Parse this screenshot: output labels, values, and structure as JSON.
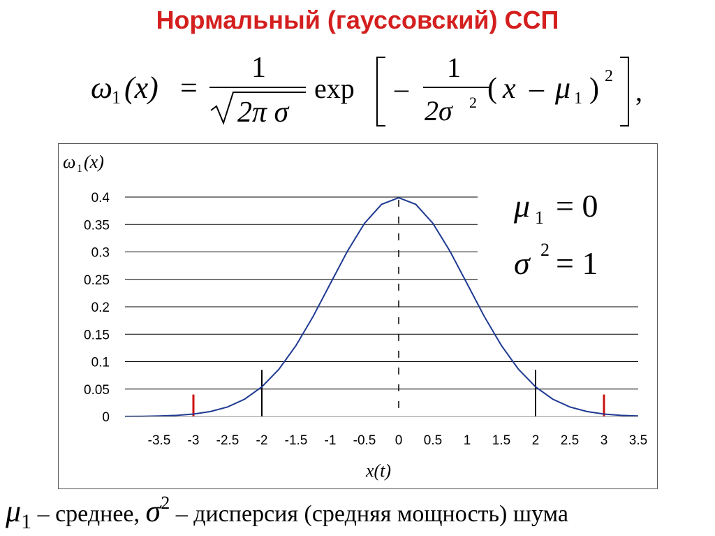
{
  "slide": {
    "title": "Нормальный (гауссовский) ССП"
  },
  "formula": {
    "lhs_symbol": "ω",
    "lhs_sub": "1",
    "lhs_arg": "(x)",
    "equals": "=",
    "numerator": "1",
    "sqrt_content": "2π σ",
    "exp": "exp",
    "minus": "–",
    "inner_numerator": "1",
    "inner_denominator": "2σ",
    "inner_denominator_sup": "2",
    "paren_open": "(",
    "x": "x",
    "inner_minus": "–",
    "mu": "μ",
    "mu_sub": "1",
    "paren_close": ")",
    "power": "2",
    "trailing": ","
  },
  "chart_data": {
    "type": "line",
    "ylabel": "ω1(x)",
    "ylabel_symbol": "ω",
    "ylabel_sub": "1",
    "ylabel_arg": "(x)",
    "xlabel": "x(t)",
    "xlim": [
      -4.0,
      3.5
    ],
    "ylim": [
      0,
      0.4
    ],
    "x_ticks": [
      "-3.5",
      "-3",
      "-2.5",
      "-2",
      "-1.5",
      "-1",
      "-0.5",
      "0",
      "0.5",
      "1",
      "1.5",
      "2",
      "2.5",
      "3",
      "3.5"
    ],
    "x_tick_values": [
      -3.5,
      -3,
      -2.5,
      -2,
      -1.5,
      -1,
      -0.5,
      0,
      0.5,
      1,
      1.5,
      2,
      2.5,
      3,
      3.5
    ],
    "y_ticks": [
      "0",
      "0.05",
      "0.1",
      "0.15",
      "0.2",
      "0.25",
      "0.3",
      "0.35",
      "0.4"
    ],
    "y_tick_values": [
      0,
      0.05,
      0.1,
      0.15,
      0.2,
      0.25,
      0.3,
      0.35,
      0.4
    ],
    "grid": "horizontal",
    "series": [
      {
        "x": [
          -4.0,
          -3.75,
          -3.5,
          -3.25,
          -3.0,
          -2.75,
          -2.5,
          -2.25,
          -2.0,
          -1.75,
          -1.5,
          -1.25,
          -1.0,
          -0.75,
          -0.5,
          -0.25,
          0.0,
          0.25,
          0.5,
          0.75,
          1.0,
          1.25,
          1.5,
          1.75,
          2.0,
          2.25,
          2.5,
          2.75,
          3.0,
          3.25,
          3.5
        ],
        "y": [
          0.0001,
          0.0004,
          0.0009,
          0.002,
          0.0044,
          0.0091,
          0.0175,
          0.0317,
          0.054,
          0.0863,
          0.1295,
          0.1826,
          0.242,
          0.3011,
          0.3521,
          0.3867,
          0.3989,
          0.3867,
          0.3521,
          0.3011,
          0.242,
          0.1826,
          0.1295,
          0.0863,
          0.054,
          0.0317,
          0.0175,
          0.0091,
          0.0044,
          0.002,
          0.0009
        ]
      }
    ],
    "line_color": "#1f3a93",
    "mean_line": {
      "x": 0,
      "style": "dashed"
    },
    "black_markers": [
      {
        "x": -2,
        "y_top": 0.085
      },
      {
        "x": 2,
        "y_top": 0.085
      }
    ],
    "red_markers": [
      {
        "x": -3,
        "y_top": 0.04
      },
      {
        "x": 3,
        "y_top": 0.04
      }
    ],
    "marker_color_red": "#cc1111",
    "annotation": {
      "mu_symbol": "μ",
      "mu_sub": "1",
      "mu_eq": "= 0",
      "sigma_symbol": "σ",
      "sigma_sup": "2",
      "sigma_eq": "= 1"
    }
  },
  "caption": {
    "mu": "μ",
    "mu_sub": "1",
    "dash1": " – среднее, ",
    "sigma": "σ",
    "sigma_sup": "2",
    "dash2": " – дисперсия (средняя мощность) шума"
  },
  "colors": {
    "title": "#d41f1f",
    "curve": "#1f3a93",
    "red_marker": "#cc1111"
  }
}
